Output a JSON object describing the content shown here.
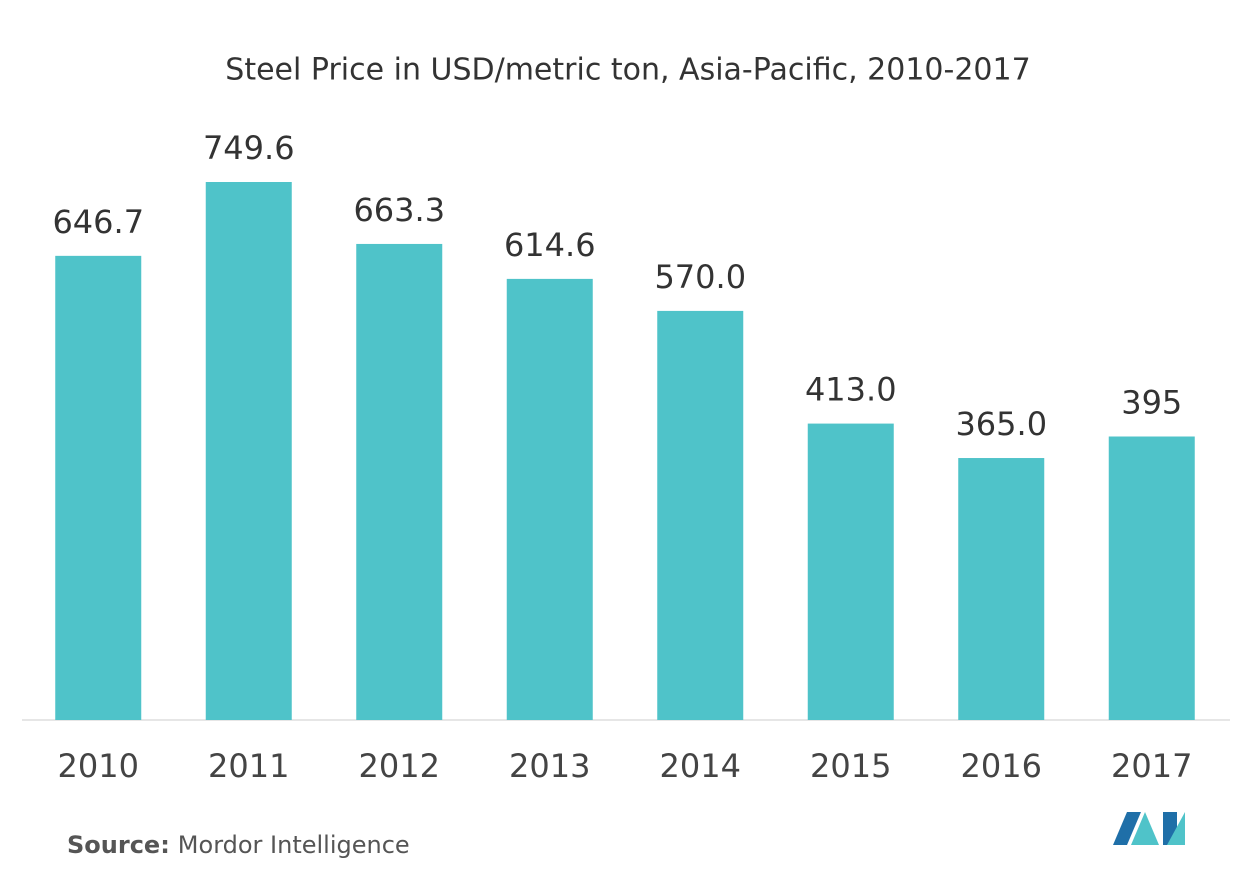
{
  "chart_data": {
    "type": "bar",
    "title": "Steel Price in USD/metric ton, Asia-Pacific, 2010-2017",
    "categories": [
      "2010",
      "2011",
      "2012",
      "2013",
      "2014",
      "2015",
      "2016",
      "2017"
    ],
    "values": [
      646.7,
      749.6,
      663.3,
      614.6,
      570.0,
      413.0,
      365.0,
      395
    ],
    "value_labels": [
      "646.7",
      "749.6",
      "663.3",
      "614.6",
      "570.0",
      "413.0",
      "365.0",
      "395"
    ],
    "color": "#4fc3c9"
  },
  "source": {
    "label": "Source:",
    "text": "Mordor Intelligence"
  }
}
